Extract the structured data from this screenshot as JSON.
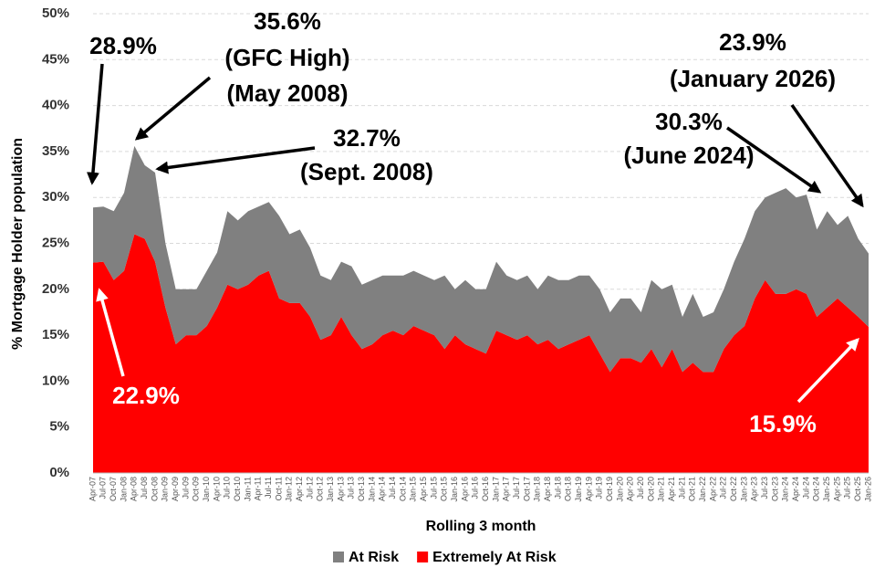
{
  "chart_data": {
    "type": "stacked_area",
    "x_label": "Rolling 3 month",
    "y_label": "% Mortgage Holder population",
    "categories": [
      "Apr-07",
      "Jul-07",
      "Oct-07",
      "Jan-08",
      "Apr-08",
      "Jul-08",
      "Oct-08",
      "Jan-09",
      "Apr-09",
      "Jul-09",
      "Oct-09",
      "Jan-10",
      "Apr-10",
      "Jul-10",
      "Oct-10",
      "Jan-11",
      "Apr-11",
      "Jul-11",
      "Oct-11",
      "Jan-12",
      "Apr-12",
      "Jul-12",
      "Oct-12",
      "Jan-13",
      "Apr-13",
      "Jul-13",
      "Oct-13",
      "Jan-14",
      "Apr-14",
      "Jul-14",
      "Oct-14",
      "Jan-15",
      "Apr-15",
      "Jul-15",
      "Oct-15",
      "Jan-16",
      "Apr-16",
      "Jul-16",
      "Oct-16",
      "Jan-17",
      "Apr-17",
      "Jul-17",
      "Oct-17",
      "Jan-18",
      "Apr-18",
      "Jul-18",
      "Oct-18",
      "Jan-19",
      "Apr-19",
      "Jul-19",
      "Oct-19",
      "Jan-20",
      "Apr-20",
      "Jul-20",
      "Oct-20",
      "Jan-21",
      "Apr-21",
      "Jul-21",
      "Oct-21",
      "Jan-22",
      "Apr-22",
      "Jul-22",
      "Oct-22",
      "Jan-23",
      "Apr-23",
      "Jul-23",
      "Oct-23",
      "Jan-24",
      "Apr-24",
      "Jul-24",
      "Oct-24",
      "Jan-25",
      "Apr-25",
      "Jul-25",
      "Oct-25",
      "Jan-26"
    ],
    "series": [
      {
        "name": "At Risk",
        "color": "#808080",
        "values": [
          6.0,
          6.0,
          7.5,
          8.5,
          9.6,
          8.0,
          9.7,
          7.0,
          6.0,
          5.0,
          5.0,
          6.0,
          6.0,
          8.0,
          7.5,
          8.0,
          7.5,
          7.5,
          9.0,
          7.5,
          8.0,
          7.5,
          7.0,
          6.0,
          6.0,
          7.5,
          7.0,
          7.0,
          6.5,
          6.0,
          6.5,
          6.0,
          6.0,
          6.0,
          8.0,
          5.0,
          7.0,
          6.5,
          7.0,
          7.5,
          6.5,
          6.5,
          6.5,
          6.0,
          7.0,
          7.5,
          7.0,
          7.0,
          6.5,
          7.0,
          6.5,
          6.5,
          6.5,
          5.5,
          7.5,
          8.5,
          7.0,
          6.0,
          7.5,
          6.0,
          6.5,
          6.5,
          8.0,
          9.5,
          9.5,
          9.0,
          11.0,
          11.5,
          10.0,
          10.8,
          9.5,
          10.5,
          8.0,
          10.0,
          8.5,
          8.0
        ]
      },
      {
        "name": "Extremely At Risk",
        "color": "#ff0000",
        "values": [
          22.9,
          23,
          21,
          22,
          26,
          25.5,
          23,
          18,
          14,
          15,
          15,
          16,
          18,
          20.5,
          20,
          20.5,
          21.5,
          22,
          19,
          18.5,
          18.5,
          17,
          14.5,
          15,
          17,
          15,
          13.5,
          14,
          15,
          15.5,
          15,
          16,
          15.5,
          15,
          13.5,
          15,
          14,
          13.5,
          13,
          15.5,
          15,
          14.5,
          15,
          14,
          14.5,
          13.5,
          14,
          14.5,
          15,
          13,
          11,
          12.5,
          12.5,
          12,
          13.5,
          11.5,
          13.5,
          11,
          12,
          11,
          11,
          13.5,
          15,
          16,
          19,
          21,
          19.5,
          19.5,
          20,
          19.5,
          17,
          18,
          19,
          18,
          17,
          15.9
        ]
      }
    ],
    "ylim": [
      0,
      50
    ],
    "yticks": [
      {
        "value": 0,
        "label": "0%"
      },
      {
        "value": 5,
        "label": "5%"
      },
      {
        "value": 10,
        "label": "10%"
      },
      {
        "value": 15,
        "label": "15%"
      },
      {
        "value": 20,
        "label": "20%"
      },
      {
        "value": 25,
        "label": "25%"
      },
      {
        "value": 30,
        "label": "30%"
      },
      {
        "value": 35,
        "label": "35%"
      },
      {
        "value": 40,
        "label": "40%"
      },
      {
        "value": 45,
        "label": "45%"
      },
      {
        "value": 50,
        "label": "50%"
      }
    ],
    "grid": true,
    "legend": "bottom",
    "annotations": [
      {
        "lines": [
          "28.9%"
        ]
      },
      {
        "lines": [
          "35.6%",
          "(GFC High)",
          "(May 2008)"
        ]
      },
      {
        "lines": [
          "32.7%",
          "(Sept. 2008)"
        ]
      },
      {
        "lines": [
          "22.9%"
        ]
      },
      {
        "lines": [
          "30.3%",
          "(June 2024)"
        ]
      },
      {
        "lines": [
          "23.9%",
          "(January 2026)"
        ]
      },
      {
        "lines": [
          "15.9%"
        ]
      }
    ]
  }
}
